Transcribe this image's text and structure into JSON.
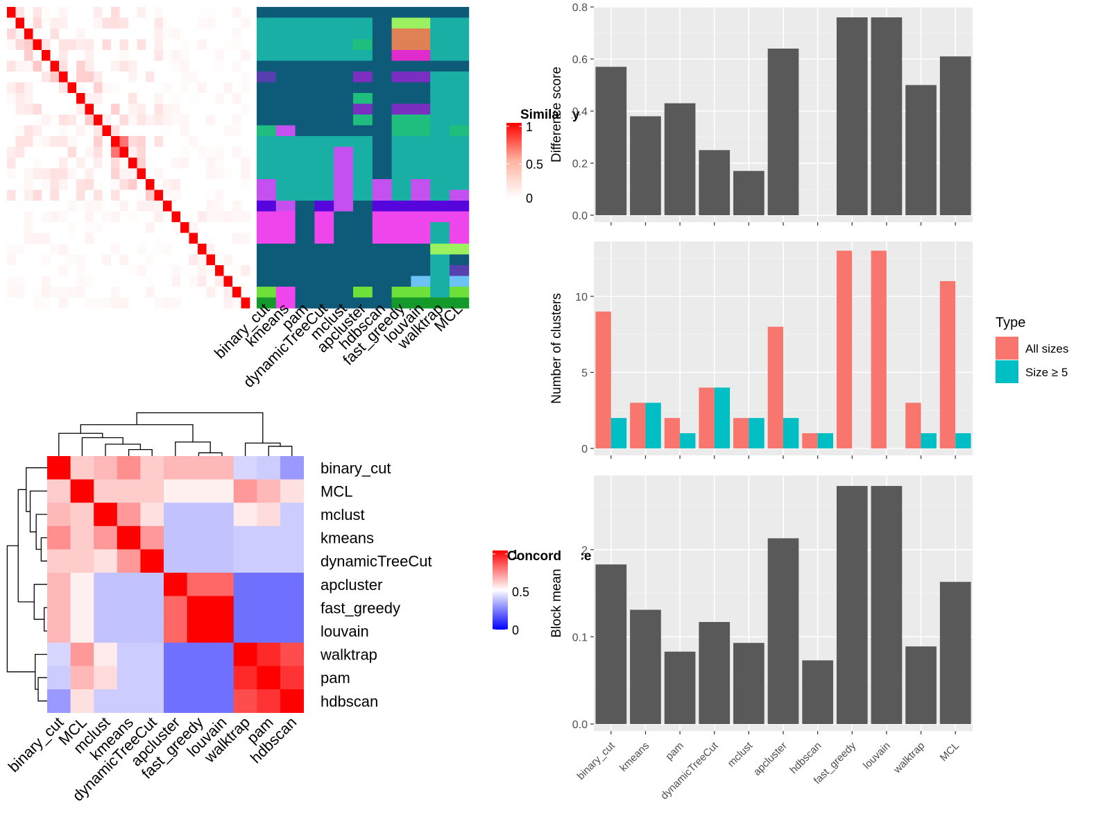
{
  "methods": [
    "binary_cut",
    "kmeans",
    "pam",
    "dynamicTreeCut",
    "mclust",
    "apcluster",
    "hdbscan",
    "fast_greedy",
    "louvain",
    "walktrap",
    "MCL"
  ],
  "similarity_heatmap": {
    "legend_title": "Similarity",
    "legend_ticks": [
      "1",
      "0.5",
      "0"
    ],
    "colors": {
      "high": "#ff0000",
      "low": "#ffffff"
    }
  },
  "cluster_assignment": {
    "columns": [
      "binary_cut",
      "kmeans",
      "pam",
      "dynamicTreeCut",
      "mclust",
      "apcluster",
      "hdbscan",
      "fast_greedy",
      "louvain",
      "walktrap",
      "MCL"
    ],
    "palette": {
      "A": "#0d5a79",
      "B": "#1aafa4",
      "C": "#c550f0",
      "D": "#ef45ec",
      "E": "#5606dd",
      "F": "#20be7e",
      "G": "#7a2fc0",
      "H": "#6ee03a",
      "I": "#e08155",
      "J": "#9cf160",
      "K": "#e02ccd",
      "L": "#6cc2f5",
      "M": "#149a2a",
      "N": "#5640b0"
    },
    "rows": [
      "AAAAAAAAAAA",
      "BBBBBBAJJBB",
      "BBBBBBAIIBB",
      "BBBBBFAIIBB",
      "BBBBBBAKKBB",
      "AAAAAAAAAAA",
      "NAAAAGAGGBB",
      "AAAAAAAAABB",
      "AAAAAFAAABB",
      "AAAAAGAGGBB",
      "AAAAAFAFFBB",
      "FCAAAAAFFBF",
      "BBBBBBABBBB",
      "BBBBCBABBBB",
      "BBBBCBABBBB",
      "BBBBCBABBBB",
      "CBBBCBCBCBB",
      "CBBBCBCBCBC",
      "ECAECAEEEEE",
      "DDADAADDDDD",
      "DDADAADDDBD",
      "DDADAADDDBD",
      "AAAAAAAAAJJ",
      "AAAAAAAAABA",
      "AAAAAAAAABN",
      "AAAAAAAALBL",
      "HDAAAHAHHBH",
      "MDAAAAAMMMM"
    ]
  },
  "concordance_heatmap": {
    "legend_title": "Concordance",
    "legend_ticks": [
      "1",
      "0.5",
      "0"
    ],
    "row_order": [
      "binary_cut",
      "MCL",
      "mclust",
      "kmeans",
      "dynamicTreeCut",
      "apcluster",
      "fast_greedy",
      "louvain",
      "walktrap",
      "pam",
      "hdbscan"
    ],
    "colors": {
      "high": "#ff0000",
      "mid": "#ffffff",
      "low": "#0000ff"
    }
  },
  "chart_data": [
    {
      "type": "bar",
      "ylabel": "Difference score",
      "categories": [
        "binary_cut",
        "kmeans",
        "pam",
        "dynamicTreeCut",
        "mclust",
        "apcluster",
        "hdbscan",
        "fast_greedy",
        "louvain",
        "walktrap",
        "MCL"
      ],
      "values": [
        0.57,
        0.38,
        0.43,
        0.25,
        0.17,
        0.64,
        0,
        0.76,
        0.76,
        0.5,
        0.61
      ],
      "ylim": [
        0,
        0.8
      ],
      "yticks": [
        "0.0",
        "0.2",
        "0.4",
        "0.6",
        "0.8"
      ],
      "bar_color": "#595959"
    },
    {
      "type": "bar",
      "ylabel": "Number of clusters",
      "categories": [
        "binary_cut",
        "kmeans",
        "pam",
        "dynamicTreeCut",
        "mclust",
        "apcluster",
        "hdbscan",
        "fast_greedy",
        "louvain",
        "walktrap",
        "MCL"
      ],
      "series": [
        {
          "name": "All sizes",
          "color": "#f8766d",
          "values": [
            9,
            3,
            2,
            4,
            2,
            8,
            1,
            13,
            13,
            3,
            11
          ]
        },
        {
          "name": "Size ≥ 5",
          "color": "#00bfc4",
          "values": [
            2,
            3,
            1,
            4,
            2,
            2,
            1,
            0,
            0,
            1,
            1
          ]
        }
      ],
      "ylim": [
        0,
        13.6
      ],
      "yticks": [
        "0",
        "5",
        "10"
      ],
      "legend_title": "Type",
      "legend_position": "right"
    },
    {
      "type": "bar",
      "ylabel": "Block mean",
      "categories": [
        "binary_cut",
        "kmeans",
        "pam",
        "dynamicTreeCut",
        "mclust",
        "apcluster",
        "hdbscan",
        "fast_greedy",
        "louvain",
        "walktrap",
        "MCL"
      ],
      "values": [
        0.183,
        0.131,
        0.083,
        0.117,
        0.093,
        0.213,
        0.073,
        0.273,
        0.273,
        0.089,
        0.163
      ],
      "ylim": [
        0,
        0.285
      ],
      "yticks": [
        "0.0",
        "0.1",
        "0.2"
      ],
      "bar_color": "#595959"
    }
  ]
}
